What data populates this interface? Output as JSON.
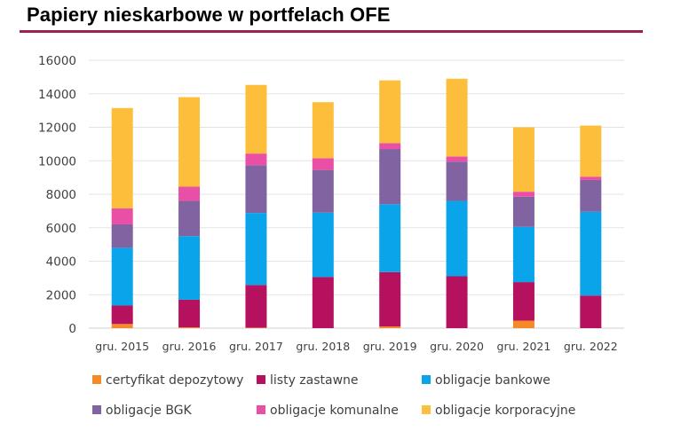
{
  "page": {
    "title": "Papiery nieskarbowe w portfelach OFE"
  },
  "chart_data": {
    "type": "bar",
    "stacked": true,
    "title": "Papiery nieskarbowe w portfelach OFE",
    "xlabel": "",
    "ylabel": "",
    "ylim": [
      0,
      16000
    ],
    "yticks": [
      0,
      2000,
      4000,
      6000,
      8000,
      10000,
      12000,
      14000,
      16000
    ],
    "grid": true,
    "legend_position": "bottom",
    "categories": [
      "gru. 2015",
      "gru. 2016",
      "gru. 2017",
      "gru. 2018",
      "gru. 2019",
      "gru. 2020",
      "gru. 2021",
      "gru. 2022"
    ],
    "series": [
      {
        "name": "certyfikat depozytowy",
        "color": "#f58a28",
        "values": [
          250,
          50,
          30,
          0,
          100,
          0,
          450,
          0
        ]
      },
      {
        "name": "listy zastawne",
        "color": "#b5115e",
        "values": [
          1100,
          1650,
          2550,
          3050,
          3250,
          3100,
          2300,
          1950
        ]
      },
      {
        "name": "obligacje bankowe",
        "color": "#0aa4ea",
        "values": [
          3450,
          3800,
          4300,
          3850,
          4050,
          4500,
          3300,
          5000
        ]
      },
      {
        "name": "obligacje BGK",
        "color": "#8063a0",
        "values": [
          1400,
          2100,
          2850,
          2550,
          3300,
          2350,
          1800,
          1900
        ]
      },
      {
        "name": "obligacje komunalne",
        "color": "#e94fa6",
        "values": [
          950,
          850,
          700,
          700,
          350,
          300,
          300,
          200
        ]
      },
      {
        "name": "obligacje korporacyjne",
        "color": "#fdbf3b",
        "values": [
          6000,
          5350,
          4100,
          3350,
          3750,
          4650,
          3850,
          3050
        ]
      }
    ]
  }
}
